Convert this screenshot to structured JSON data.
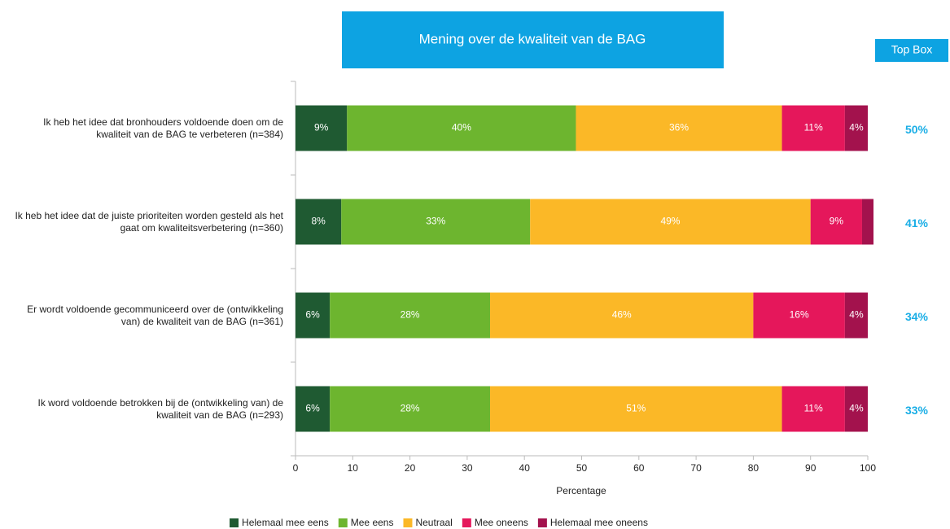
{
  "chart_data": {
    "type": "stacked-bar-horizontal",
    "title": "Mening over de kwaliteit van de BAG",
    "xlabel": "Percentage",
    "categories": [
      "Ik heb het idee dat bronhouders voldoende doen om de kwaliteit van de BAG te verbeteren (n=384)",
      "Ik heb het idee dat de juiste prioriteiten worden gesteld als het gaat om kwaliteitsverbetering (n=360)",
      "Er wordt voldoende gecommuniceerd over de (ontwikkeling van) de kwaliteit van de BAG (n=361)",
      "Ik word voldoende betrokken bij de (ontwikkeling van) de kwaliteit van de BAG (n=293)"
    ],
    "series": [
      {
        "name": "Helemaal mee eens",
        "color": "#1f5a32",
        "values": [
          9,
          8,
          6,
          6
        ],
        "value_labels": [
          "9%",
          "8%",
          "6%",
          "6%"
        ]
      },
      {
        "name": "Mee eens",
        "color": "#6db52f",
        "values": [
          40,
          33,
          28,
          28
        ],
        "value_labels": [
          "40%",
          "33%",
          "28%",
          "28%"
        ]
      },
      {
        "name": "Neutraal",
        "color": "#fbb827",
        "values": [
          36,
          49,
          46,
          51
        ],
        "value_labels": [
          "36%",
          "49%",
          "46%",
          "51%"
        ]
      },
      {
        "name": "Mee oneens",
        "color": "#e5175b",
        "values": [
          11,
          9,
          16,
          11
        ],
        "value_labels": [
          "11%",
          "9%",
          "16%",
          "11%"
        ]
      },
      {
        "name": "Helemaal mee oneens",
        "color": "#a3124d",
        "values": [
          4,
          2,
          4,
          4
        ],
        "value_labels": [
          "4%",
          null,
          "4%",
          "4%"
        ]
      }
    ],
    "top_box": {
      "title": "Top Box",
      "color": "#1aaee6",
      "values": [
        50,
        41,
        34,
        33
      ],
      "value_labels": [
        "50%",
        "41%",
        "34%",
        "33%"
      ]
    },
    "xlim": [
      0,
      100
    ],
    "xticks": [
      0,
      10,
      20,
      30,
      40,
      50,
      60,
      70,
      80,
      90,
      100
    ],
    "legend": "bottom"
  }
}
